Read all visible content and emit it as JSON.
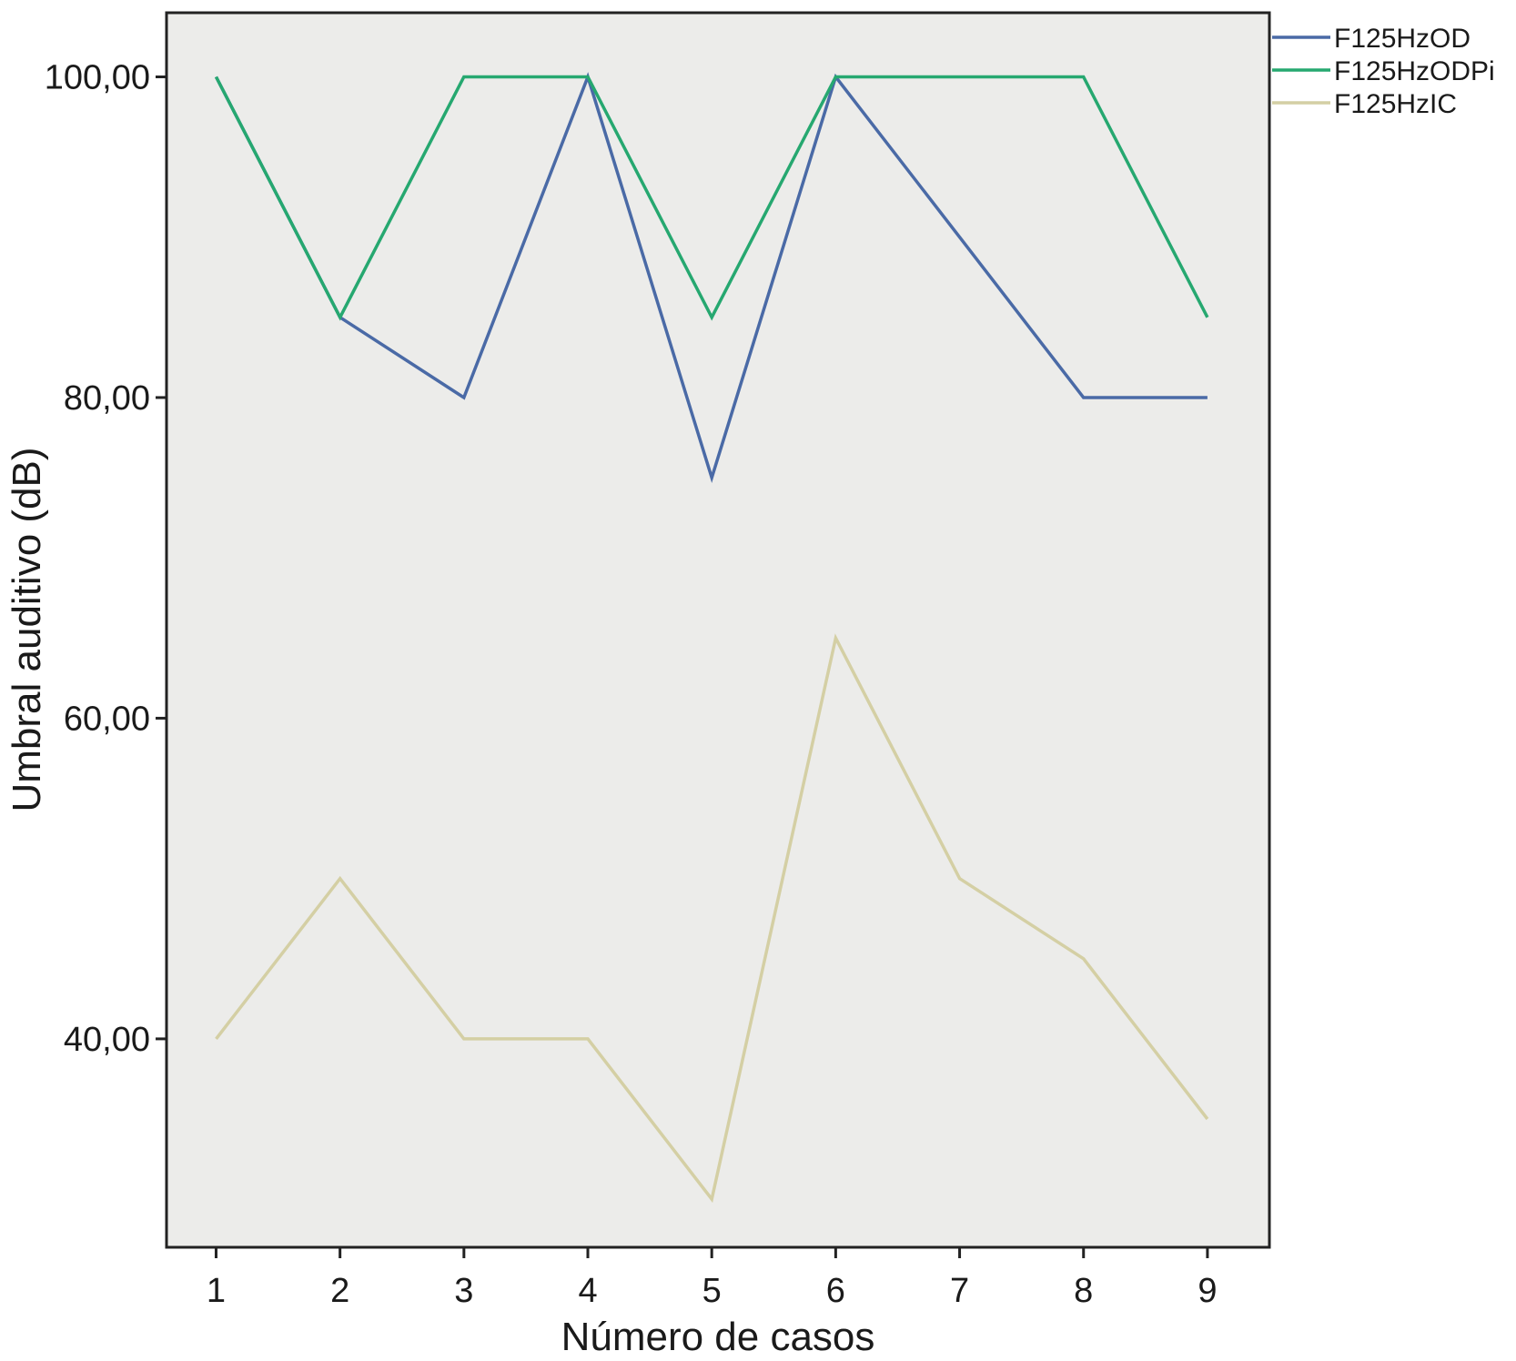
{
  "chart_data": {
    "type": "line",
    "title": "",
    "xlabel": "Número de casos",
    "ylabel": "Umbral auditivo (dB)",
    "x": [
      1,
      2,
      3,
      4,
      5,
      6,
      7,
      8,
      9
    ],
    "x_tick_labels": [
      "1",
      "2",
      "3",
      "4",
      "5",
      "6",
      "7",
      "8",
      "9"
    ],
    "y_ticks": [
      40,
      60,
      80,
      100
    ],
    "y_tick_labels": [
      "40,00",
      "60,00",
      "80,00",
      "100,00"
    ],
    "xlim": [
      0.6,
      9.5
    ],
    "ylim": [
      27,
      104
    ],
    "grid": false,
    "legend_position": "top-right, outside plot",
    "background": "#ececea",
    "series": [
      {
        "name": "F125HzOD",
        "color": "#4a6aa6",
        "values": [
          100,
          85,
          80,
          100,
          75,
          100,
          90,
          80,
          80
        ]
      },
      {
        "name": "F125HzODPi",
        "color": "#26a870",
        "values": [
          100,
          85,
          100,
          100,
          85,
          100,
          100,
          100,
          85
        ]
      },
      {
        "name": "F125HzIC",
        "color": "#d4cfa4",
        "values": [
          40,
          50,
          40,
          40,
          30,
          65,
          50,
          45,
          35
        ]
      }
    ]
  }
}
